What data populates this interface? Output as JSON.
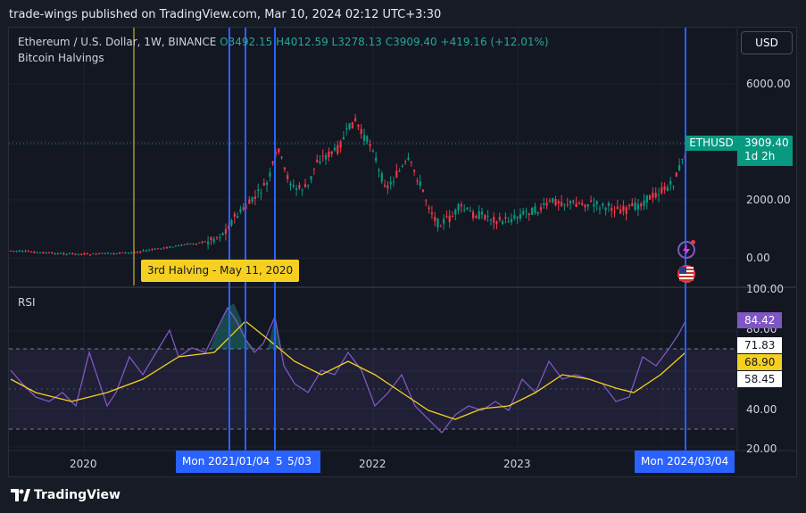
{
  "publisher_line": "trade-wings published on TradingView.com, Mar 10, 2024 02:12 UTC+3:30",
  "header": {
    "symbol": "Ethereum / U.S. Dollar, 1W, BINANCE",
    "open": "O3492.15",
    "high": "H4012.59",
    "low": "L3278.13",
    "close": "C3909.40",
    "change": "+419.16 (+12.01%)",
    "indicator": "Bitcoin Halvings"
  },
  "currency_button": "USD",
  "price_axis": [
    "6000.00",
    "2000.00",
    "0.00"
  ],
  "price_tag": {
    "symbol": "ETHUSD",
    "price": "3909.40",
    "countdown": "1d 2h"
  },
  "halving_label": "3rd Halving - May 11, 2020",
  "rsi": {
    "label": "RSI",
    "axis": [
      "100.00",
      "80.00",
      "40.00",
      "20.00"
    ],
    "tags": {
      "rsi": "84.42",
      "upper": "71.83",
      "ma": "68.90",
      "lower": "58.45"
    }
  },
  "time_axis": [
    "2020",
    "2022",
    "2023"
  ],
  "date_tags": [
    "Mon 2021/01/04",
    "5",
    "5/03",
    "Mon 2024/03/04"
  ],
  "footer": "TradingView",
  "colors": {
    "up": "#089981",
    "down": "#f23645",
    "rsi": "#7e57c2",
    "rsi_ma": "#f5d020",
    "halving": "#f5d020",
    "marker": "#2962ff"
  }
}
